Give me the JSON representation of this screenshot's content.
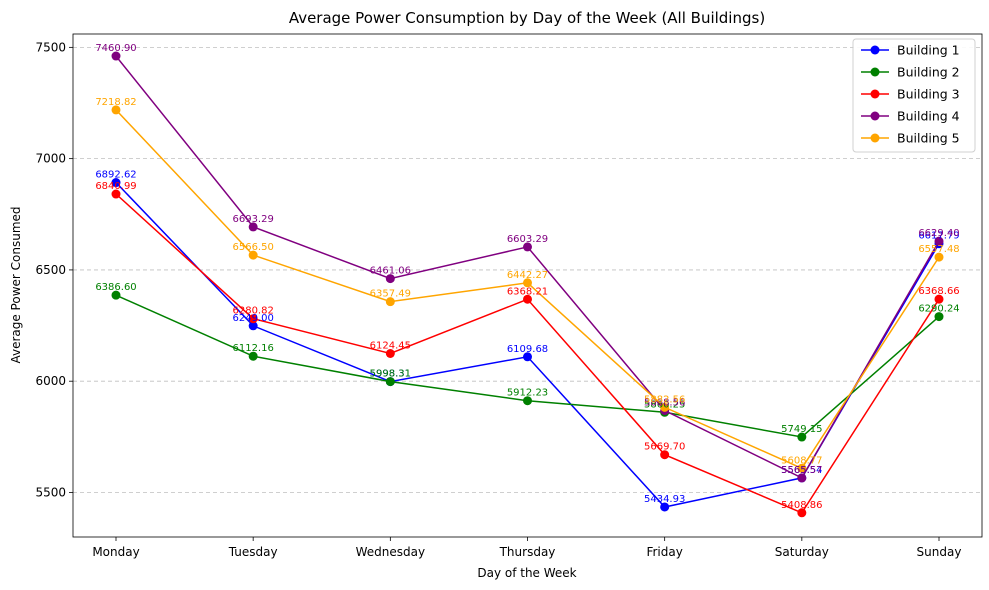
{
  "chart_data": {
    "type": "line",
    "title": "Average Power Consumption by Day of the Week (All Buildings)",
    "xlabel": "Day of the Week",
    "ylabel": "Average Power Consumed",
    "categories": [
      "Monday",
      "Tuesday",
      "Wednesday",
      "Thursday",
      "Friday",
      "Saturday",
      "Sunday"
    ],
    "ylim": [
      5300,
      7560
    ],
    "yticks": [
      5500,
      6000,
      6500,
      7000,
      7500
    ],
    "grid": "horizontal dashed",
    "legend_position": "top-right",
    "series": [
      {
        "name": "Building 1",
        "color": "#0000ff",
        "values": [
          6892.62,
          6249.0,
          5998.31,
          6109.68,
          5434.93,
          5565.54,
          6617.79
        ],
        "labels": [
          "6892.62",
          "6249.00",
          "5998.31",
          "6109.68",
          "5434.93",
          "5565.54",
          "6617.79"
        ]
      },
      {
        "name": "Building 2",
        "color": "#008000",
        "values": [
          6386.6,
          6112.16,
          5998.31,
          5912.23,
          5860.25,
          5749.15,
          6290.24
        ],
        "labels": [
          "6386.60",
          "6112.16",
          "5998.31",
          "5912.23",
          "5860.25",
          "5749.15",
          "6290.24"
        ]
      },
      {
        "name": "Building 3",
        "color": "#ff0000",
        "values": [
          6840.99,
          6280.82,
          6124.45,
          6368.21,
          5669.7,
          5408.86,
          6368.66
        ],
        "labels": [
          "6840.99",
          "6280.82",
          "6124.45",
          "6368.21",
          "5669.70",
          "5408.86",
          "6368.66"
        ]
      },
      {
        "name": "Building 4",
        "color": "#800080",
        "values": [
          7460.9,
          6693.29,
          6461.06,
          6603.29,
          5868.56,
          5565.57,
          6629.4
        ],
        "labels": [
          "7460.90",
          "6693.29",
          "6461.06",
          "6603.29",
          "5868.56",
          "5565.57",
          "6629.40"
        ]
      },
      {
        "name": "Building 5",
        "color": "#ffa500",
        "values": [
          7218.82,
          6566.5,
          6357.49,
          6442.27,
          5882.56,
          5608.77,
          6557.48
        ],
        "labels": [
          "7218.82",
          "6566.50",
          "6357.49",
          "6442.27",
          "5882.56",
          "5608.77",
          "6557.48"
        ]
      }
    ]
  }
}
